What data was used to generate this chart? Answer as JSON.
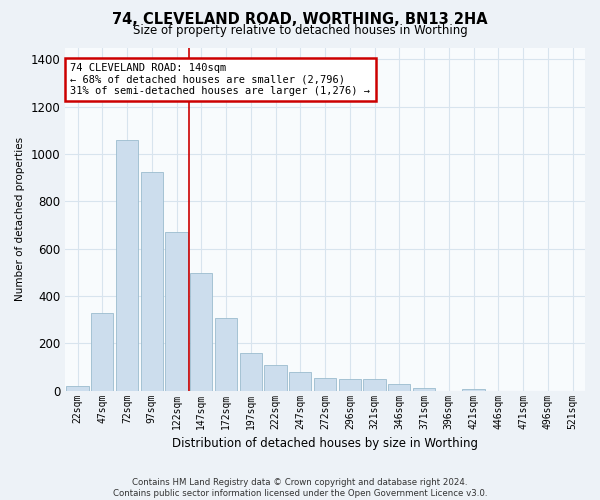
{
  "title": "74, CLEVELAND ROAD, WORTHING, BN13 2HA",
  "subtitle": "Size of property relative to detached houses in Worthing",
  "xlabel": "Distribution of detached houses by size in Worthing",
  "ylabel": "Number of detached properties",
  "footer": "Contains HM Land Registry data © Crown copyright and database right 2024.\nContains public sector information licensed under the Open Government Licence v3.0.",
  "categories": [
    "22sqm",
    "47sqm",
    "72sqm",
    "97sqm",
    "122sqm",
    "147sqm",
    "172sqm",
    "197sqm",
    "222sqm",
    "247sqm",
    "272sqm",
    "296sqm",
    "321sqm",
    "346sqm",
    "371sqm",
    "396sqm",
    "421sqm",
    "446sqm",
    "471sqm",
    "496sqm",
    "521sqm"
  ],
  "values": [
    20,
    330,
    1060,
    925,
    670,
    495,
    305,
    160,
    110,
    80,
    55,
    50,
    50,
    30,
    10,
    0,
    5,
    0,
    0,
    0,
    0
  ],
  "bar_color": "#ccdded",
  "bar_edge_color": "#9bbcce",
  "vline_color": "#cc0000",
  "vline_x": 4.5,
  "annotation_text": "74 CLEVELAND ROAD: 140sqm\n← 68% of detached houses are smaller (2,796)\n31% of semi-detached houses are larger (1,276) →",
  "annotation_box_color": "white",
  "annotation_box_edge_color": "#cc0000",
  "ylim": [
    0,
    1450
  ],
  "yticks": [
    0,
    200,
    400,
    600,
    800,
    1000,
    1200,
    1400
  ],
  "grid_color": "#d8e4ee",
  "background_color": "#edf2f7",
  "plot_background": "#f8fbfd"
}
